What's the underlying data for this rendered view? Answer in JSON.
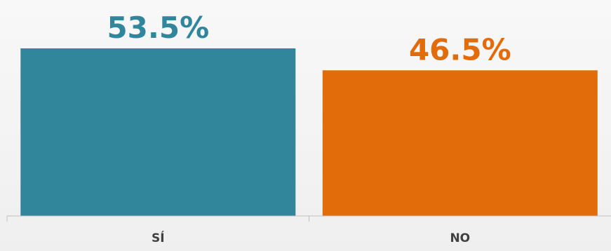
{
  "chart_data": {
    "type": "bar",
    "categories": [
      "SÍ",
      "NO"
    ],
    "values": [
      53.5,
      46.5
    ],
    "value_labels": [
      "53.5%",
      "46.5%"
    ],
    "colors": [
      "#31869b",
      "#e36c0a"
    ],
    "ylim": [
      0,
      60
    ],
    "grid": false,
    "legend": "none"
  }
}
